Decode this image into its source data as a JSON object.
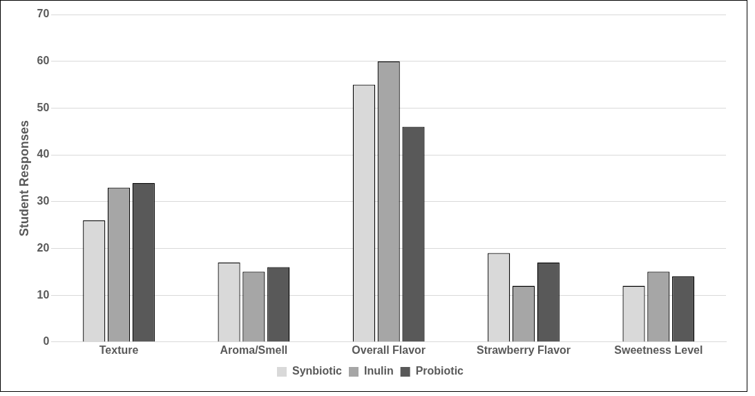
{
  "chart_data": {
    "type": "bar",
    "ylabel": "Student Responses",
    "categories": [
      "Texture",
      "Aroma/Smell",
      "Overall Flavor",
      "Strawberry Flavor",
      "Sweetness Level"
    ],
    "series": [
      {
        "name": "Synbiotic",
        "color": "#d9d9d9",
        "values": [
          26,
          17,
          55,
          19,
          12
        ]
      },
      {
        "name": "Inulin",
        "color": "#a6a6a6",
        "values": [
          33,
          15,
          60,
          12,
          15
        ]
      },
      {
        "name": "Probiotic",
        "color": "#595959",
        "values": [
          34,
          16,
          46,
          17,
          14
        ]
      }
    ],
    "ylim": [
      0,
      70
    ],
    "yticks": [
      0,
      10,
      20,
      30,
      40,
      50,
      60,
      70
    ],
    "grid": "y",
    "legend": "bottom"
  }
}
